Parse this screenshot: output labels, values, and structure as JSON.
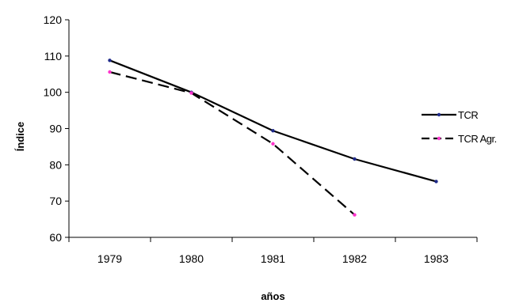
{
  "chart_data": {
    "type": "line",
    "categories": [
      "1979",
      "1980",
      "1981",
      "1982",
      "1983"
    ],
    "series": [
      {
        "name": "TCR",
        "values": [
          108.8,
          100.0,
          89.4,
          81.6,
          75.4
        ],
        "color": "#000000",
        "marker_color": "#1f2a8a",
        "style": "solid"
      },
      {
        "name": "TCR Agr.",
        "values": [
          105.6,
          99.8,
          85.8,
          66.2,
          null
        ],
        "color": "#000000",
        "marker_color": "#ff33cc",
        "style": "dashed"
      }
    ],
    "xlabel": "años",
    "ylabel": "Índice",
    "ylim": [
      60,
      120
    ],
    "yticks": [
      60,
      70,
      80,
      90,
      100,
      110,
      120
    ],
    "grid": false,
    "legend_position": "right"
  }
}
